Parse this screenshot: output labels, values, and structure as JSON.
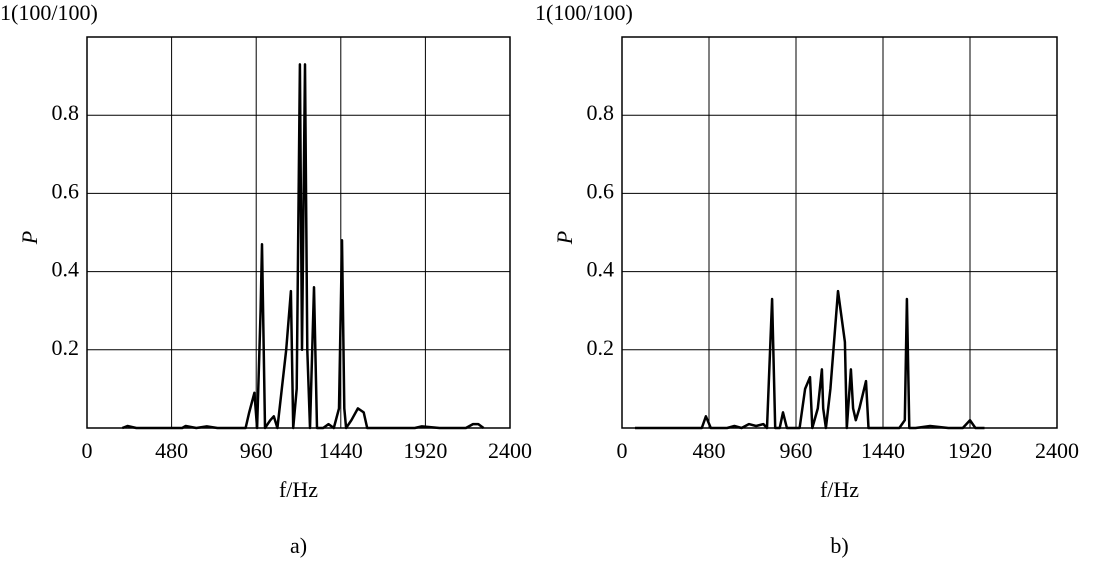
{
  "chart_data": [
    {
      "type": "line",
      "xlabel": "f/Hz",
      "ylabel": "P",
      "caption": "a)",
      "color": "#000000",
      "grid": true,
      "xlim": [
        0,
        2400
      ],
      "ylim": [
        0,
        1
      ],
      "xticks": [
        0,
        480,
        960,
        1440,
        1920,
        2400
      ],
      "yticks": [
        0.2,
        0.4,
        0.6,
        0.8,
        {
          "value": 1,
          "label": "1(100/100)"
        }
      ],
      "x": [
        200,
        230,
        280,
        540,
        560,
        620,
        680,
        740,
        900,
        920,
        950,
        965,
        985,
        993,
        1010,
        1040,
        1060,
        1080,
        1130,
        1157,
        1170,
        1190,
        1208,
        1220,
        1237,
        1250,
        1265,
        1288,
        1305,
        1340,
        1370,
        1400,
        1430,
        1447,
        1460,
        1470,
        1500,
        1537,
        1570,
        1590,
        1700,
        1860,
        1900,
        2000,
        2150,
        2190,
        2220,
        2250
      ],
      "values": [
        0,
        0.005,
        0,
        0,
        0.005,
        0,
        0.004,
        0,
        0,
        0.04,
        0.09,
        0,
        0.3,
        0.47,
        0,
        0.02,
        0.03,
        0,
        0.2,
        0.35,
        0,
        0.1,
        0.93,
        0.2,
        0.93,
        0.2,
        0,
        0.36,
        0,
        0,
        0.01,
        0,
        0.05,
        0.48,
        0.05,
        0,
        0.02,
        0.05,
        0.04,
        0,
        0,
        0,
        0.004,
        0,
        0,
        0.01,
        0.01,
        0
      ]
    },
    {
      "type": "line",
      "xlabel": "f/Hz",
      "ylabel": "P",
      "caption": "b)",
      "color": "#000000",
      "grid": true,
      "xlim": [
        0,
        2400
      ],
      "ylim": [
        0,
        1
      ],
      "xticks": [
        0,
        480,
        960,
        1440,
        1920,
        2400
      ],
      "yticks": [
        0.2,
        0.4,
        0.6,
        0.8,
        {
          "value": 1,
          "label": "1(100/100)"
        }
      ],
      "x": [
        72,
        400,
        440,
        463,
        490,
        580,
        620,
        660,
        700,
        740,
        780,
        800,
        828,
        845,
        870,
        888,
        910,
        980,
        1010,
        1037,
        1050,
        1080,
        1103,
        1110,
        1125,
        1150,
        1192,
        1230,
        1240,
        1263,
        1275,
        1290,
        1310,
        1346,
        1360,
        1450,
        1530,
        1560,
        1572,
        1585,
        1620,
        1700,
        1800,
        1880,
        1920,
        1950,
        2000
      ],
      "values": [
        0,
        0,
        0,
        0.03,
        0,
        0,
        0.005,
        0,
        0.01,
        0.005,
        0.01,
        0,
        0.33,
        0,
        0,
        0.04,
        0,
        0,
        0.1,
        0.13,
        0,
        0.05,
        0.15,
        0.05,
        0,
        0.1,
        0.35,
        0.22,
        0,
        0.15,
        0.05,
        0.02,
        0.05,
        0.12,
        0,
        0,
        0,
        0.02,
        0.33,
        0,
        0,
        0.005,
        0,
        0,
        0.02,
        0,
        0
      ]
    }
  ]
}
